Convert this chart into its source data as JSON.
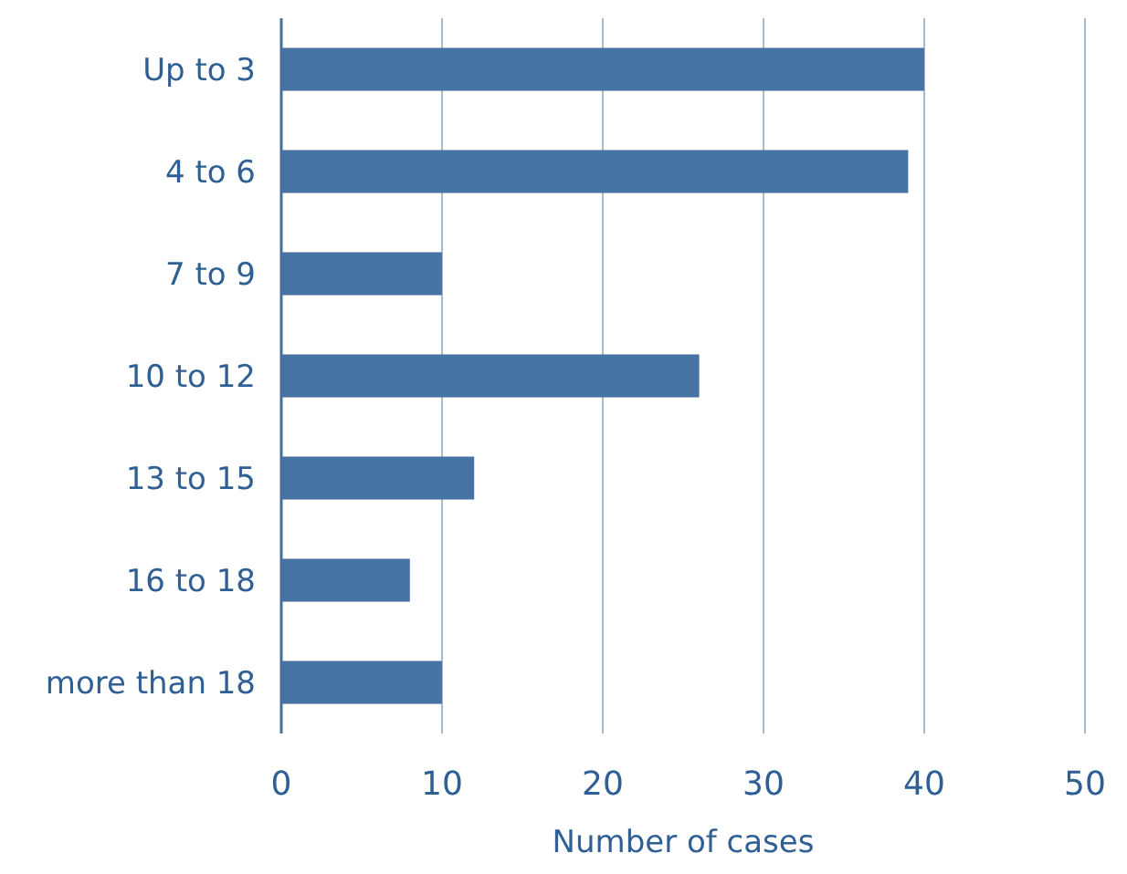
{
  "chart_data": {
    "type": "bar",
    "orientation": "horizontal",
    "xlabel": "Number of cases",
    "categories": [
      "Up to 3",
      "4 to 6",
      "7 to 9",
      "10 to 12",
      "13 to 15",
      "16 to 18",
      "more than 18"
    ],
    "values": [
      40,
      39,
      10,
      26,
      12,
      8,
      10
    ],
    "color": "#4672a4",
    "xlim": [
      0,
      50
    ],
    "xticks": [
      0,
      10,
      20,
      30,
      40,
      50
    ],
    "grid": "x"
  }
}
